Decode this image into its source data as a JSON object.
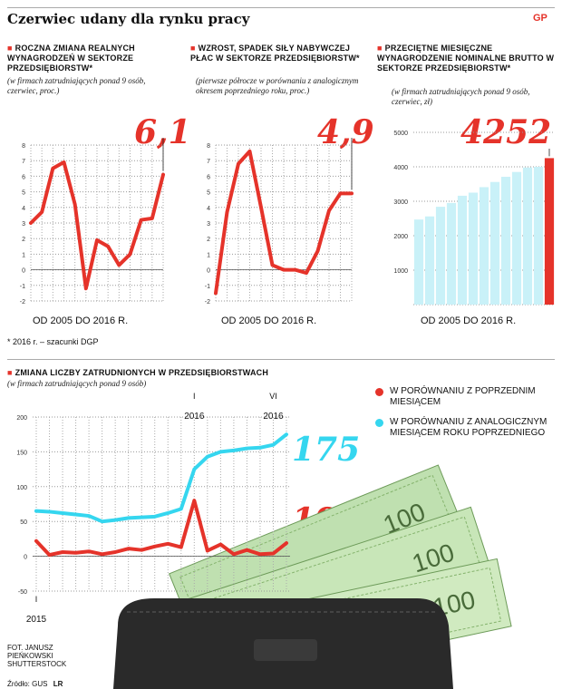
{
  "header": {
    "title": "Czerwiec udany dla rynku pracy",
    "logo": "GP"
  },
  "footnote": "* 2016 r.  – szacunki DGP",
  "credits": {
    "photo": "FOT. JANUSZ PIEŃKOWSKI SHUTTERSTOCK",
    "source": "Źródło: GUS",
    "author": "LR"
  },
  "colors": {
    "accent": "#e5332a",
    "cyan": "#35d6ef",
    "bar": "#c9f1f8"
  },
  "chart_data": [
    {
      "type": "line",
      "title": "Roczna zmiana realnych wynagrodzeń w sektorze przedsiębiorstw*",
      "subtitle": "(w firmach zatrudniających ponad 9 osób, czerwiec, proc.)",
      "callout": "6,1",
      "period": "OD 2005 DO 2016 R.",
      "ylim": [
        -2,
        8
      ],
      "yticks": [
        "8",
        "7",
        "6",
        "5",
        "4",
        "3",
        "2",
        "1",
        "0",
        "-1",
        "-2"
      ],
      "values": [
        3.0,
        3.7,
        6.5,
        6.9,
        4.2,
        -1.2,
        1.9,
        1.5,
        0.3,
        1.0,
        3.2,
        3.3,
        6.1
      ]
    },
    {
      "type": "line",
      "title": "Wzrost, spadek siły nabywczej płac w sektorze przedsiębiorstw*",
      "subtitle": "(pierwsze półrocze w porównaniu z analogicznym okresem poprzedniego roku, proc.)",
      "callout": "4,9",
      "period": "OD 2005 DO 2016 R.",
      "ylim": [
        -2,
        8
      ],
      "yticks": [
        "8",
        "7",
        "6",
        "5",
        "4",
        "3",
        "2",
        "1",
        "0",
        "-1",
        "-2"
      ],
      "values": [
        -1.5,
        3.7,
        6.8,
        7.6,
        4.0,
        0.3,
        0.0,
        0.0,
        -0.2,
        1.2,
        3.8,
        4.9,
        4.9
      ]
    },
    {
      "type": "bar",
      "title": "Przeciętne miesięczne wynagrodzenie nominalne brutto w sektorze przedsiębiorstw*",
      "subtitle": "(w firmach zatrudniających ponad 9 osób, czerwiec, zł)",
      "callout": "4252",
      "period": "OD 2005 DO 2016 R.",
      "ylim": [
        0,
        5000
      ],
      "yticks": [
        "5000",
        "4000",
        "3000",
        "2000",
        "1000",
        "0"
      ],
      "values": [
        2470,
        2560,
        2840,
        2950,
        3160,
        3250,
        3410,
        3560,
        3710,
        3850,
        3980,
        4000,
        4252
      ]
    },
    {
      "type": "line",
      "title": "Zmiana liczby zatrudnionych w przedsiębiorstwach",
      "subtitle": "(w firmach zatrudniających ponad 9 osób)",
      "ylim": [
        -50,
        200
      ],
      "yticks": [
        "200",
        "150",
        "100",
        "50",
        "0",
        "-50"
      ],
      "x_labels": [
        {
          "month": "I",
          "year": "2015"
        },
        {
          "month": "I",
          "year": "2016"
        },
        {
          "month": "VI",
          "year": "2016"
        }
      ],
      "series": [
        {
          "name": "W PORÓWNANIU Z POPRZEDNIM MIESIĄCEM",
          "callout": "19",
          "color": "#e5332a",
          "values": [
            22,
            2,
            6,
            5,
            7,
            3,
            6,
            11,
            9,
            14,
            18,
            13,
            80,
            8,
            17,
            3,
            9,
            3,
            4,
            19
          ]
        },
        {
          "name": "W PORÓWNANIU Z ANALOGICZNYM MIESIĄCEM ROKU POPRZEDNIEGO",
          "callout": "175",
          "color": "#35d6ef",
          "values": [
            65,
            64,
            62,
            60,
            58,
            50,
            52,
            55,
            56,
            57,
            62,
            68,
            125,
            143,
            150,
            152,
            155,
            156,
            160,
            175
          ]
        }
      ]
    }
  ]
}
